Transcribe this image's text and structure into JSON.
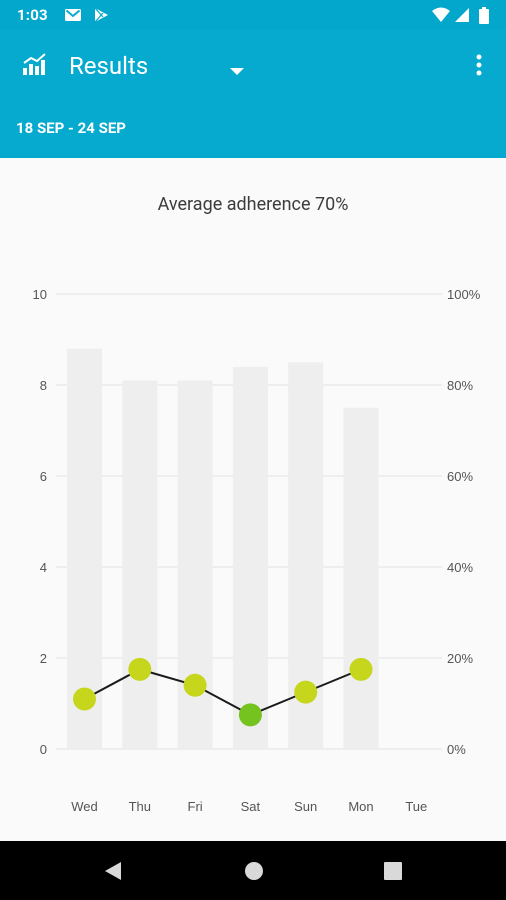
{
  "status_bar": {
    "time": "1:03"
  },
  "app_bar": {
    "title": "Results",
    "date_range": "18 SEP - 24 SEP"
  },
  "colors": {
    "primary": "#06aacf",
    "bar": "#eeeeee",
    "point_yellowgreen": "#c6d61d",
    "point_green": "#74c31e"
  },
  "chart_data": {
    "type": "bar",
    "title": "Average adherence 70%",
    "categories": [
      "Wed",
      "Thu",
      "Fri",
      "Sat",
      "Sun",
      "Mon",
      "Tue"
    ],
    "left_axis": {
      "ticks": [
        "0",
        "2",
        "4",
        "6",
        "8",
        "10"
      ],
      "ylim": [
        0,
        10
      ]
    },
    "right_axis": {
      "ticks": [
        "0%",
        "20%",
        "40%",
        "60%",
        "80%",
        "100%"
      ],
      "ylim": [
        0,
        100
      ]
    },
    "series": [
      {
        "type": "bar",
        "axis": "right",
        "values": [
          88,
          81,
          81,
          84,
          85,
          75,
          null
        ]
      },
      {
        "type": "line",
        "axis": "left",
        "values": [
          1.1,
          1.75,
          1.4,
          0.75,
          1.25,
          1.75,
          null
        ],
        "point_colors": [
          "#c6d61d",
          "#c6d61d",
          "#c6d61d",
          "#74c31e",
          "#c6d61d",
          "#c6d61d",
          null
        ]
      }
    ],
    "grid": true
  }
}
